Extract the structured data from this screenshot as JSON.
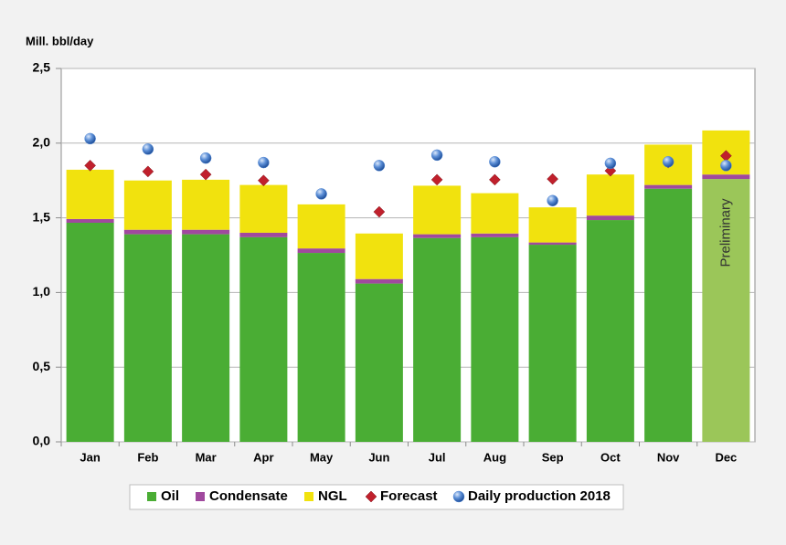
{
  "chart_data": {
    "type": "bar",
    "stacked": true,
    "y_label": "Mill. bbl/day",
    "categories": [
      "Jan",
      "Feb",
      "Mar",
      "Apr",
      "May",
      "Jun",
      "Jul",
      "Aug",
      "Sep",
      "Oct",
      "Nov",
      "Dec"
    ],
    "series": [
      {
        "name": "Oil",
        "type": "bar",
        "color": "#4aad34",
        "values": [
          1.467,
          1.39,
          1.39,
          1.37,
          1.265,
          1.06,
          1.365,
          1.37,
          1.32,
          1.485,
          1.695,
          1.76
        ]
      },
      {
        "name": "Condensate",
        "type": "bar",
        "color": "#a0499e",
        "values": [
          0.025,
          0.03,
          0.03,
          0.03,
          0.03,
          0.03,
          0.025,
          0.025,
          0.015,
          0.03,
          0.025,
          0.03
        ]
      },
      {
        "name": "NGL",
        "type": "bar",
        "color": "#f1e20e",
        "values": [
          0.33,
          0.33,
          0.335,
          0.32,
          0.295,
          0.305,
          0.325,
          0.27,
          0.235,
          0.275,
          0.27,
          0.295
        ]
      },
      {
        "name": "Forecast",
        "type": "marker",
        "marker": "diamond",
        "color": "#c0202c",
        "values": [
          1.85,
          1.81,
          1.79,
          1.75,
          null,
          1.54,
          1.755,
          1.755,
          1.76,
          1.815,
          1.87,
          1.915
        ]
      },
      {
        "name": "Daily production 2018",
        "type": "marker",
        "marker": "circle",
        "color": "#5b8ed6",
        "values": [
          2.03,
          1.96,
          1.9,
          1.87,
          1.66,
          1.85,
          1.92,
          1.875,
          1.615,
          1.865,
          1.875,
          1.85
        ]
      }
    ],
    "preliminary": {
      "label": "Preliminary",
      "category": "Dec",
      "color": "#9bc659"
    },
    "ylim": [
      0,
      2.5
    ],
    "yticks": [
      {
        "value": 0,
        "label": "0,0"
      },
      {
        "value": 0.5,
        "label": "0,5"
      },
      {
        "value": 1,
        "label": "1,0"
      },
      {
        "value": 1.5,
        "label": "1,5"
      },
      {
        "value": 2,
        "label": "2,0"
      },
      {
        "value": 2.5,
        "label": "2,5"
      }
    ],
    "grid": true
  }
}
